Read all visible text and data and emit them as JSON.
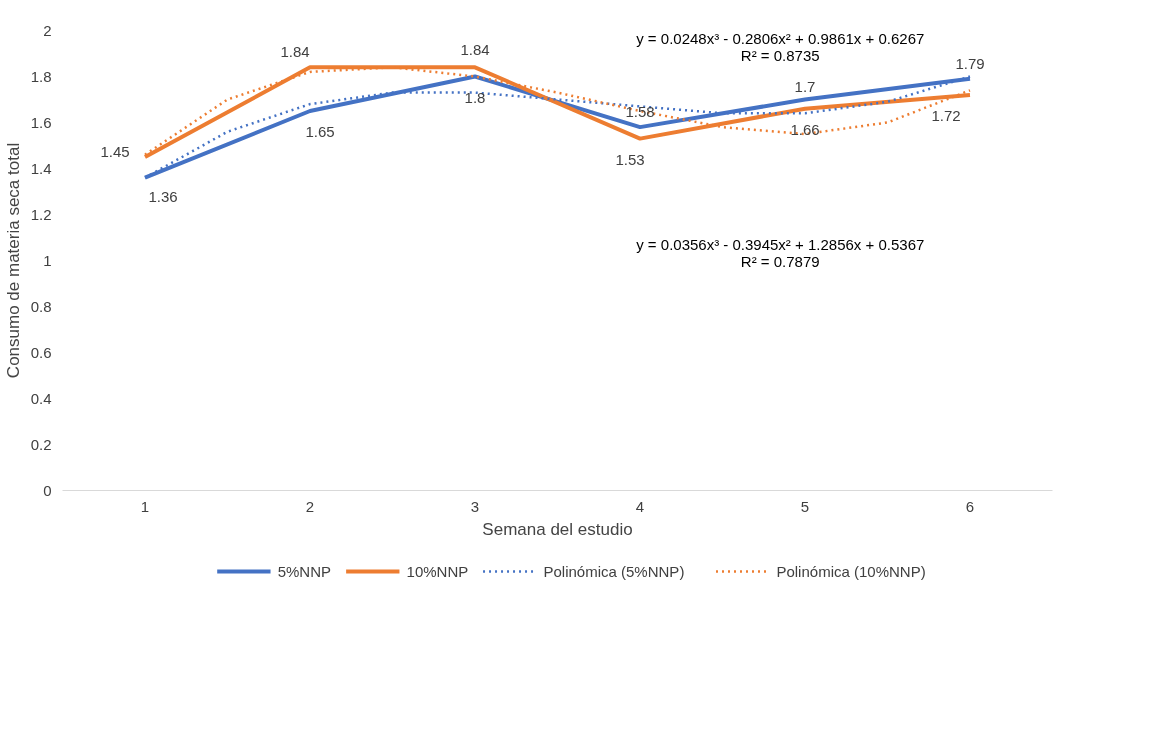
{
  "chart_data": {
    "type": "line",
    "xlabel": "Semana del estudio",
    "ylabel": "Consumo de materia seca total",
    "x": [
      1,
      2,
      3,
      4,
      5,
      6
    ],
    "xlim": [
      0.5,
      6.5
    ],
    "xticks": [
      1,
      2,
      3,
      4,
      5,
      6
    ],
    "ylim": [
      0,
      2
    ],
    "yticks": [
      0,
      0.2,
      0.4,
      0.6,
      0.8,
      1,
      1.2,
      1.4,
      1.6,
      1.8,
      2
    ],
    "grid": false,
    "legend": "bottom",
    "marker": "none",
    "series": [
      {
        "name": "5%NNP",
        "color": "#4472c4",
        "values": [
          1.36,
          1.65,
          1.8,
          1.58,
          1.7,
          1.79
        ],
        "value_labels": [
          "1.36",
          "1.65",
          "1.8",
          "1.58",
          "1.7",
          "1.79"
        ]
      },
      {
        "name": "10%NNP",
        "color": "#ed7d31",
        "values": [
          1.45,
          1.84,
          1.84,
          1.53,
          1.66,
          1.72
        ],
        "value_labels": [
          "1.45",
          "1.84",
          "1.84",
          "1.53",
          "1.66",
          "1.72"
        ]
      },
      {
        "name": "Polinómica (5%NNP)",
        "color": "#4472c4",
        "line_style": "dotted",
        "x": [
          1,
          1.5,
          2,
          2.5,
          3,
          3.5,
          4,
          4.5,
          5,
          5.5,
          6
        ],
        "values": [
          1.36,
          1.56,
          1.68,
          1.73,
          1.73,
          1.7,
          1.67,
          1.64,
          1.64,
          1.69,
          1.8
        ]
      },
      {
        "name": "Polinómica (10%NNP)",
        "color": "#ed7d31",
        "line_style": "dotted",
        "x": [
          1,
          1.5,
          2,
          2.5,
          3,
          3.5,
          4,
          4.5,
          5,
          5.5,
          6
        ],
        "values": [
          1.46,
          1.7,
          1.82,
          1.84,
          1.8,
          1.73,
          1.65,
          1.58,
          1.55,
          1.6,
          1.74
        ]
      }
    ],
    "annotations": [
      "y = 0.0248x³ - 0.2806x² + 0.9861x + 0.6267",
      "R² = 0.8735",
      "y = 0.0356x³ - 0.3945x² + 1.2856x + 0.5367",
      "R² = 0.7879"
    ]
  }
}
